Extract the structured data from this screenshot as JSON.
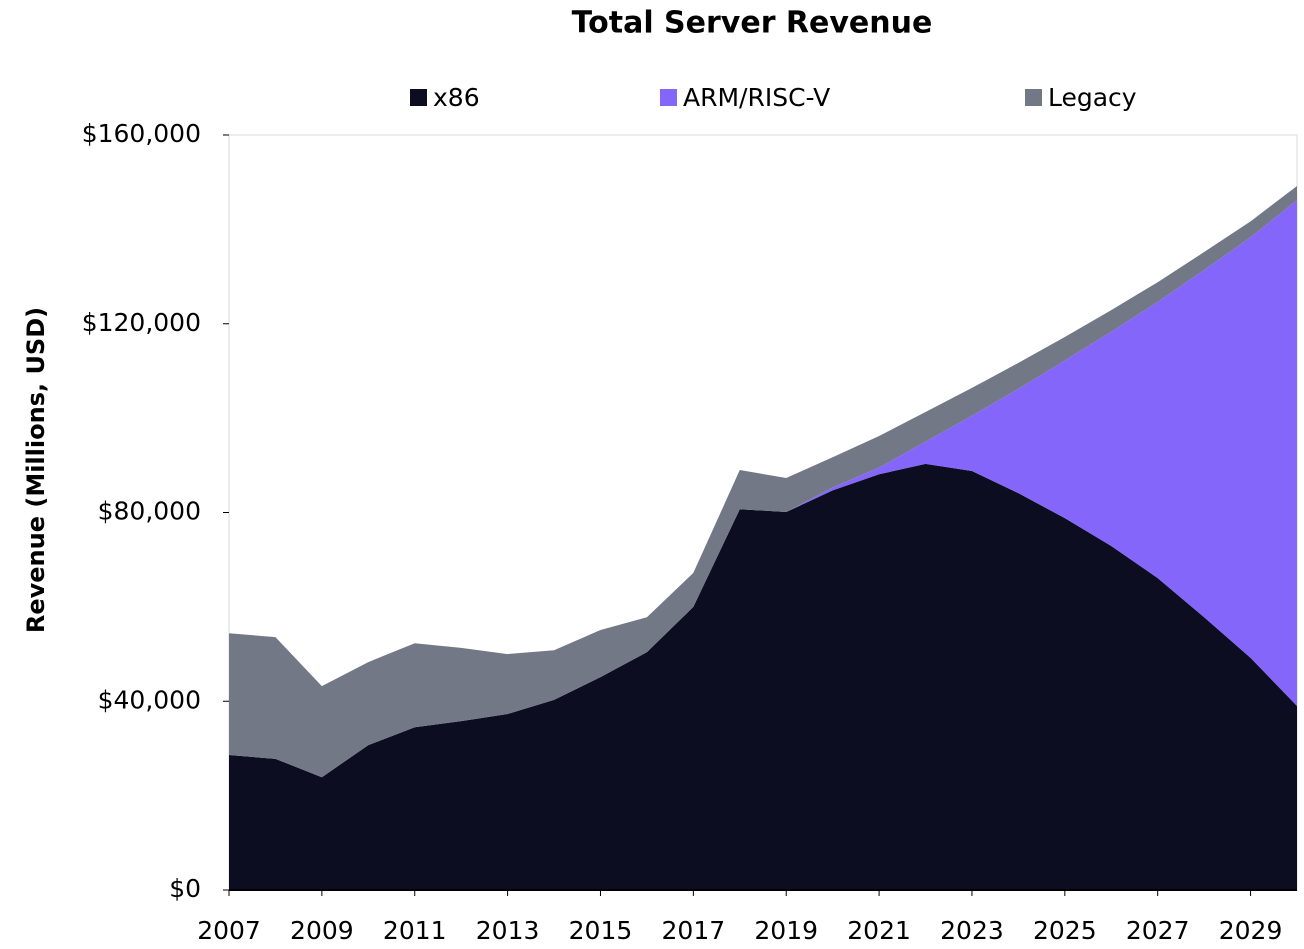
{
  "chart_data": {
    "type": "stacked-area",
    "title": "Total Server Revenue",
    "y_label": "Revenue (Millions, USD)",
    "x": [
      2007,
      2008,
      2009,
      2010,
      2011,
      2012,
      2013,
      2014,
      2015,
      2016,
      2017,
      2018,
      2019,
      2020,
      2021,
      2022,
      2023,
      2024,
      2025,
      2026,
      2027,
      2028,
      2029,
      2030
    ],
    "series": [
      {
        "name": "x86",
        "color": "#0d0d22",
        "values": [
          28600,
          27800,
          23900,
          30700,
          34500,
          35800,
          37300,
          40300,
          45100,
          50400,
          60000,
          80700,
          80100,
          84700,
          88100,
          90300,
          88800,
          84100,
          78800,
          72900,
          66100,
          57800,
          49200,
          39000
        ]
      },
      {
        "name": "ARM/RISC-V",
        "color": "#8566fb",
        "values": [
          0,
          0,
          0,
          0,
          0,
          0,
          0,
          0,
          0,
          0,
          0,
          0,
          0,
          600,
          1400,
          4700,
          11700,
          22100,
          33400,
          45400,
          58500,
          73600,
          89100,
          107200
        ]
      },
      {
        "name": "Legacy",
        "color": "#737887",
        "values": [
          25800,
          25800,
          19300,
          17600,
          17800,
          15500,
          12700,
          10500,
          10000,
          7400,
          7200,
          8300,
          7200,
          6400,
          6700,
          6300,
          5900,
          5500,
          5000,
          4600,
          4200,
          3800,
          3400,
          3000
        ]
      }
    ],
    "xlim": [
      2007,
      2030
    ],
    "xticks": [
      2007,
      2009,
      2011,
      2013,
      2015,
      2017,
      2019,
      2021,
      2023,
      2025,
      2027,
      2029
    ],
    "ylim": [
      0,
      160000
    ],
    "yticks": [
      {
        "value": 0,
        "label": "$0"
      },
      {
        "value": 40000,
        "label": "$40,000"
      },
      {
        "value": 80000,
        "label": "$80,000"
      },
      {
        "value": 120000,
        "label": "$120,000"
      },
      {
        "value": 160000,
        "label": "$160,000"
      }
    ],
    "legend": "top"
  }
}
